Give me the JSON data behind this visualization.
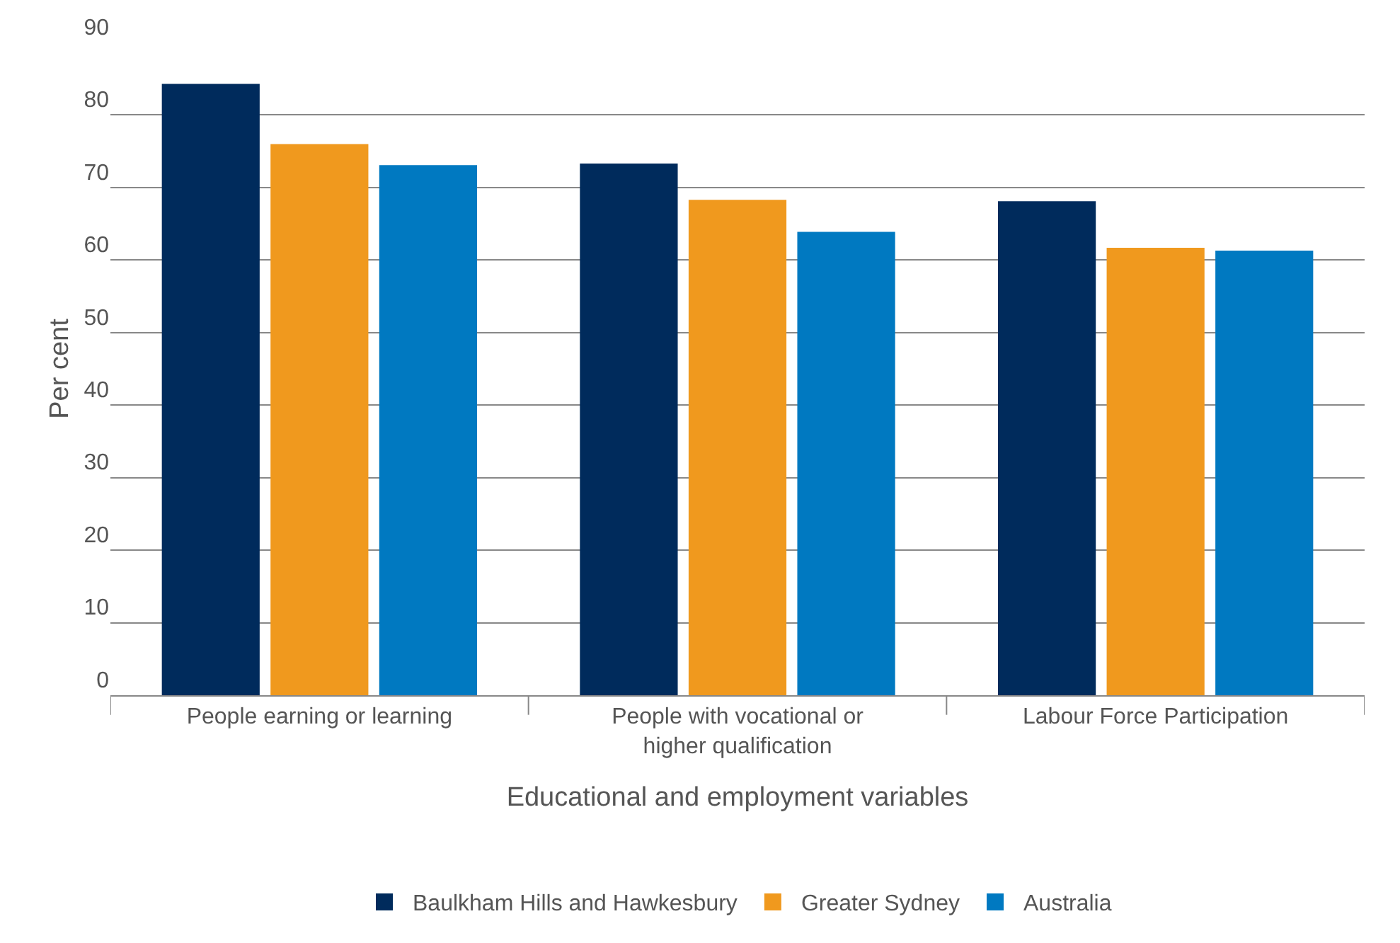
{
  "chart_data": {
    "type": "bar",
    "xlabel": "Educational and employment variables",
    "ylabel": "Per cent",
    "categories": [
      "People earning or learning",
      "People with vocational or\nhigher qualification",
      "Labour Force Participation"
    ],
    "series": [
      {
        "name": "Baulkham Hills and Hawkesbury",
        "color": "#002b5c",
        "values": [
          84.3,
          73.3,
          68.1
        ]
      },
      {
        "name": "Greater Sydney",
        "color": "#f0991e",
        "values": [
          76.0,
          68.3,
          61.7
        ]
      },
      {
        "name": "Australia",
        "color": "#0079c1",
        "values": [
          73.1,
          63.9,
          61.3
        ]
      }
    ],
    "ylim": [
      0,
      90
    ],
    "yticks": [
      0,
      10,
      20,
      30,
      40,
      50,
      60,
      70,
      80,
      90
    ],
    "grid": "y",
    "legend": "bottom"
  }
}
